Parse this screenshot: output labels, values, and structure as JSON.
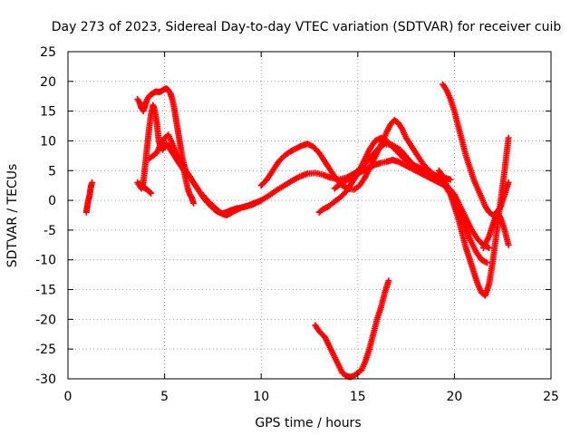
{
  "chart_data": {
    "type": "scatter",
    "title": "Day 273 of 2023, Sidereal Day-to-day VTEC variation (SDTVAR) for receiver cuib",
    "xlabel": "GPS time / hours",
    "ylabel": "SDTVAR / TECUs",
    "xlim": [
      0,
      25
    ],
    "ylim": [
      -30,
      25
    ],
    "xticks": [
      0,
      5,
      10,
      15,
      20,
      25
    ],
    "yticks": [
      -30,
      -25,
      -20,
      -15,
      -10,
      -5,
      0,
      5,
      10,
      15,
      20,
      25
    ],
    "grid": true,
    "marker": "+",
    "series_color": "#ff0000",
    "series": [
      {
        "name": "seg1",
        "x": [
          0.95,
          1.0,
          1.05,
          1.1,
          1.15,
          1.2,
          1.25
        ],
        "y": [
          -2,
          -1,
          0,
          0.5,
          1.5,
          2.5,
          3
        ]
      },
      {
        "name": "seg2",
        "x": [
          3.6,
          3.7,
          3.8,
          3.9,
          4.0,
          4.1,
          4.2,
          4.3,
          4.4,
          4.5,
          4.6,
          4.7,
          4.8,
          4.9,
          5.0,
          5.1,
          5.2,
          5.3,
          5.4,
          5.5,
          5.6,
          5.7,
          5.8,
          5.9,
          6.0,
          6.1,
          6.2,
          6.3,
          6.4,
          6.5,
          6.6,
          6.7,
          6.8,
          6.9,
          7.0,
          7.2,
          7.4,
          7.6,
          7.8,
          8.0,
          8.2,
          8.4,
          8.6,
          8.8,
          9.0,
          9.2,
          9.4,
          9.6,
          9.8,
          10.0
        ],
        "y": [
          17,
          16.5,
          15.5,
          15,
          16,
          17,
          17.5,
          17.8,
          18,
          18.2,
          18.3,
          18.2,
          18.3,
          18.5,
          18.7,
          18.8,
          18.5,
          18,
          17,
          15.5,
          13.5,
          11.5,
          9.5,
          7.5,
          6,
          5,
          4.5,
          4,
          3.5,
          3,
          2.5,
          2,
          1.5,
          1,
          0.5,
          -0.3,
          -1,
          -1.6,
          -2,
          -2.2,
          -2,
          -1.7,
          -1.5,
          -1.3,
          -1.2,
          -1,
          -0.8,
          -0.5,
          -0.3,
          0
        ]
      },
      {
        "name": "seg3",
        "x": [
          3.6,
          3.7,
          3.8,
          3.9,
          4.0,
          4.1,
          4.2,
          4.3,
          4.4,
          4.5,
          4.6,
          4.7,
          4.8,
          4.9,
          5.0,
          5.1,
          5.2,
          5.3,
          5.4,
          5.5,
          5.6,
          5.7,
          5.8,
          5.9,
          6.0,
          6.2,
          6.4,
          6.6,
          6.8,
          7.0,
          7.2,
          7.4,
          7.6,
          7.8,
          8.0,
          8.2,
          8.4,
          8.6,
          8.8,
          9.0,
          9.5,
          10.0
        ],
        "y": [
          3,
          2.5,
          2,
          3,
          6,
          9,
          12,
          14.5,
          16,
          15,
          13,
          10,
          9,
          8.5,
          9,
          9.5,
          9,
          8.5,
          8,
          7.5,
          7,
          6.5,
          6,
          5.5,
          5,
          4.5,
          3.5,
          2.5,
          1.5,
          0.8,
          0,
          -0.6,
          -1.2,
          -1.8,
          -2.3,
          -2.5,
          -2.2,
          -1.8,
          -1.5,
          -1.2,
          -0.8,
          0
        ]
      },
      {
        "name": "seg4",
        "x": [
          4.2,
          4.4,
          4.6,
          4.8,
          5.0,
          5.2,
          5.4,
          5.6,
          5.8,
          6.0,
          6.1,
          6.2,
          6.3,
          6.4,
          6.5
        ],
        "y": [
          7,
          7.5,
          8,
          9.5,
          10.5,
          11,
          9.5,
          8,
          6.5,
          5,
          3.5,
          2,
          1,
          0.5,
          -0.5
        ]
      },
      {
        "name": "seg5",
        "x": [
          3.7,
          3.8,
          3.9,
          4.0,
          4.1,
          4.2,
          4.3
        ],
        "y": [
          2.8,
          2.5,
          2.2,
          2,
          1.8,
          1.5,
          1.2
        ]
      },
      {
        "name": "seg6",
        "x": [
          10.0,
          10.3,
          10.6,
          10.9,
          11.2,
          11.5,
          11.8,
          12.1,
          12.4,
          12.7,
          13.0,
          13.3,
          13.6,
          13.9,
          14.2,
          14.5,
          14.8,
          15.1,
          15.4,
          15.7,
          16.0,
          16.3,
          16.5,
          16.7,
          16.9,
          17.1,
          17.3,
          17.5,
          17.8,
          18.1,
          18.4,
          18.7,
          19.0,
          19.3,
          19.6,
          19.9,
          20.2,
          20.5,
          20.8,
          21.1,
          21.4,
          21.7
        ],
        "y": [
          2.5,
          3.5,
          5,
          6.5,
          7.5,
          8.2,
          8.7,
          9.2,
          9.5,
          9,
          8,
          6.5,
          5,
          3.5,
          2.5,
          2,
          1.8,
          2.5,
          4,
          6,
          8,
          10,
          11.5,
          12.8,
          13.5,
          13,
          12,
          10.5,
          9,
          7.5,
          6,
          5,
          4.2,
          3.2,
          2,
          0.5,
          -1.5,
          -4,
          -6.5,
          -8.5,
          -10,
          -10.5
        ]
      },
      {
        "name": "seg7",
        "x": [
          10.0,
          10.4,
          10.8,
          11.2,
          11.6,
          12.0,
          12.4,
          12.8,
          13.2,
          13.6,
          14.0,
          14.4,
          14.8,
          15.2,
          15.6,
          16.0,
          16.4,
          16.8,
          17.2,
          17.6,
          18.0,
          18.4,
          18.8,
          19.2,
          19.6,
          20.0,
          20.3,
          20.6,
          20.9,
          21.2,
          21.5,
          21.8
        ],
        "y": [
          0,
          0.8,
          1.7,
          2.5,
          3.3,
          4,
          4.5,
          4.6,
          4.3,
          3.8,
          3.5,
          3.8,
          4.5,
          5.5,
          7,
          8.5,
          9.5,
          9.3,
          8.5,
          7,
          5.5,
          4.5,
          3.8,
          3.2,
          2.5,
          1,
          -1,
          -3,
          -5,
          -6.5,
          -7.5,
          -8
        ]
      },
      {
        "name": "seg8",
        "x": [
          13.0,
          13.2,
          13.5,
          13.8,
          14.1,
          14.4,
          14.7,
          15.0,
          15.3,
          15.6,
          15.9,
          16.2,
          16.5,
          16.8,
          17.1,
          17.4,
          17.7,
          18.0,
          18.3,
          18.6,
          18.9,
          19.2,
          19.5,
          19.8
        ],
        "y": [
          -2,
          -1.5,
          -1,
          -0.2,
          0.5,
          1.5,
          3,
          4.5,
          6.5,
          8.5,
          10,
          10.5,
          10,
          9,
          8,
          7,
          6.3,
          5.8,
          5.3,
          4.8,
          4.3,
          4,
          3.8,
          3.5
        ]
      },
      {
        "name": "seg9",
        "x": [
          13.8,
          14.0,
          14.2,
          14.5,
          14.8,
          15.0,
          15.3,
          15.6,
          15.9,
          16.2,
          16.5,
          16.8,
          17.1,
          17.4,
          17.7,
          18.0,
          18.3,
          18.6,
          18.9,
          19.2,
          19.5
        ],
        "y": [
          2,
          2.5,
          3,
          3.5,
          4,
          4.5,
          5,
          5.5,
          6,
          6.3,
          6.5,
          6.8,
          6.5,
          6,
          5.5,
          5,
          4.5,
          4,
          3.5,
          3,
          2.5
        ]
      },
      {
        "name": "seg10",
        "x": [
          19.4,
          19.6,
          19.8,
          20.0,
          20.2,
          20.4,
          20.6,
          20.8,
          21.0,
          21.2,
          21.4,
          21.6,
          21.8,
          22.0,
          22.2,
          22.4,
          22.6,
          22.8
        ],
        "y": [
          19.5,
          18.5,
          17,
          15,
          12.5,
          10,
          7.5,
          5.5,
          3.5,
          2,
          0.5,
          -1,
          -2,
          -2.5,
          -2,
          -1,
          1,
          3
        ]
      },
      {
        "name": "seg11",
        "x": [
          19.2,
          19.4,
          19.6,
          19.8,
          20.0,
          20.2,
          20.4,
          20.6,
          20.8,
          21.0,
          21.2,
          21.4,
          21.6,
          21.8,
          22.0,
          22.2,
          22.4,
          22.6,
          22.8
        ],
        "y": [
          5,
          4,
          2.5,
          1,
          -1,
          -3,
          -5.5,
          -8,
          -10,
          -12,
          -14,
          -15.5,
          -16,
          -14,
          -10,
          -5,
          0,
          5,
          10.5
        ]
      },
      {
        "name": "seg12",
        "x": [
          21.5,
          21.8,
          22.0,
          22.2,
          22.4,
          22.6,
          22.8
        ],
        "y": [
          -8,
          -6,
          -4,
          -2,
          -3,
          -5,
          -7.5
        ]
      },
      {
        "name": "seg13",
        "x": [
          12.8,
          13.0,
          13.3,
          13.6,
          13.9,
          14.2,
          14.4,
          14.6,
          14.8,
          15.0,
          15.2,
          15.4,
          15.6,
          15.8,
          16.0,
          16.2,
          16.4,
          16.6
        ],
        "y": [
          -21,
          -22,
          -23,
          -25,
          -27,
          -29,
          -29.5,
          -29.7,
          -29.5,
          -29,
          -28.5,
          -27,
          -25,
          -22.5,
          -20,
          -18,
          -15.5,
          -13.5
        ]
      }
    ]
  }
}
